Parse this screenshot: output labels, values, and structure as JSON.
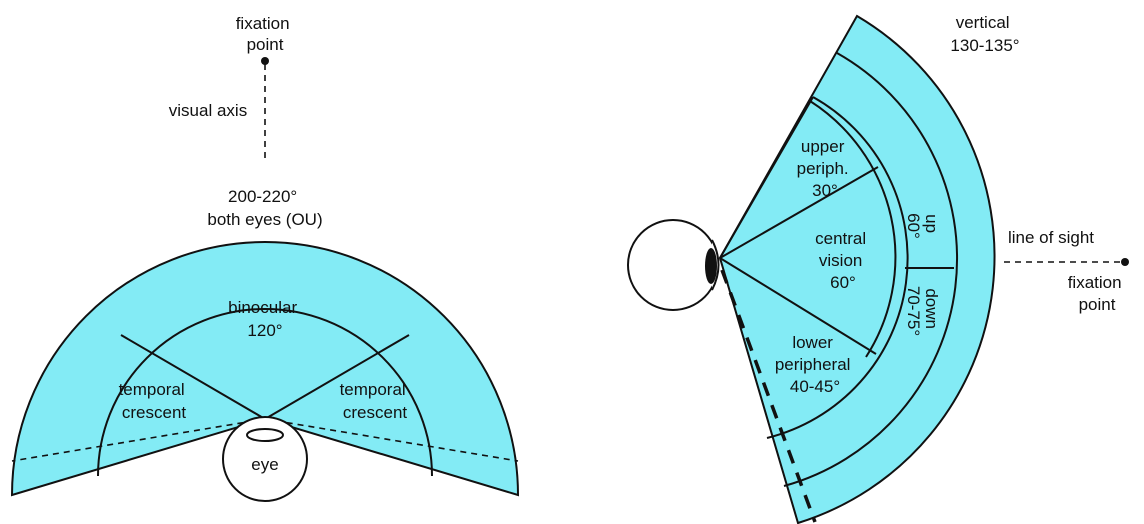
{
  "colors": {
    "field": "#83ebf5",
    "stroke": "#111111",
    "background": "#ffffff"
  },
  "left_diagram": {
    "fixation_point": [
      "fixation",
      "point"
    ],
    "visual_axis": "visual axis",
    "both_eyes": [
      "200-220°",
      "both eyes (OU)"
    ],
    "binocular": [
      "binocular",
      "120°"
    ],
    "temporal_crescent_left": [
      "temporal",
      "crescent"
    ],
    "temporal_crescent_right": [
      "temporal",
      "crescent"
    ],
    "eye": "eye"
  },
  "right_diagram": {
    "vertical": [
      "vertical",
      "130-135°"
    ],
    "upper_peripheral": [
      "upper",
      "periph.",
      "30°"
    ],
    "central_vision": [
      "central",
      "vision",
      "60°"
    ],
    "lower_peripheral": [
      "lower",
      "peripheral",
      "40-45°"
    ],
    "up": [
      "up",
      "60°"
    ],
    "down": [
      "down",
      "70-75°"
    ],
    "line_of_sight": "line of sight",
    "fixation_point": [
      "fixation",
      "point"
    ]
  }
}
